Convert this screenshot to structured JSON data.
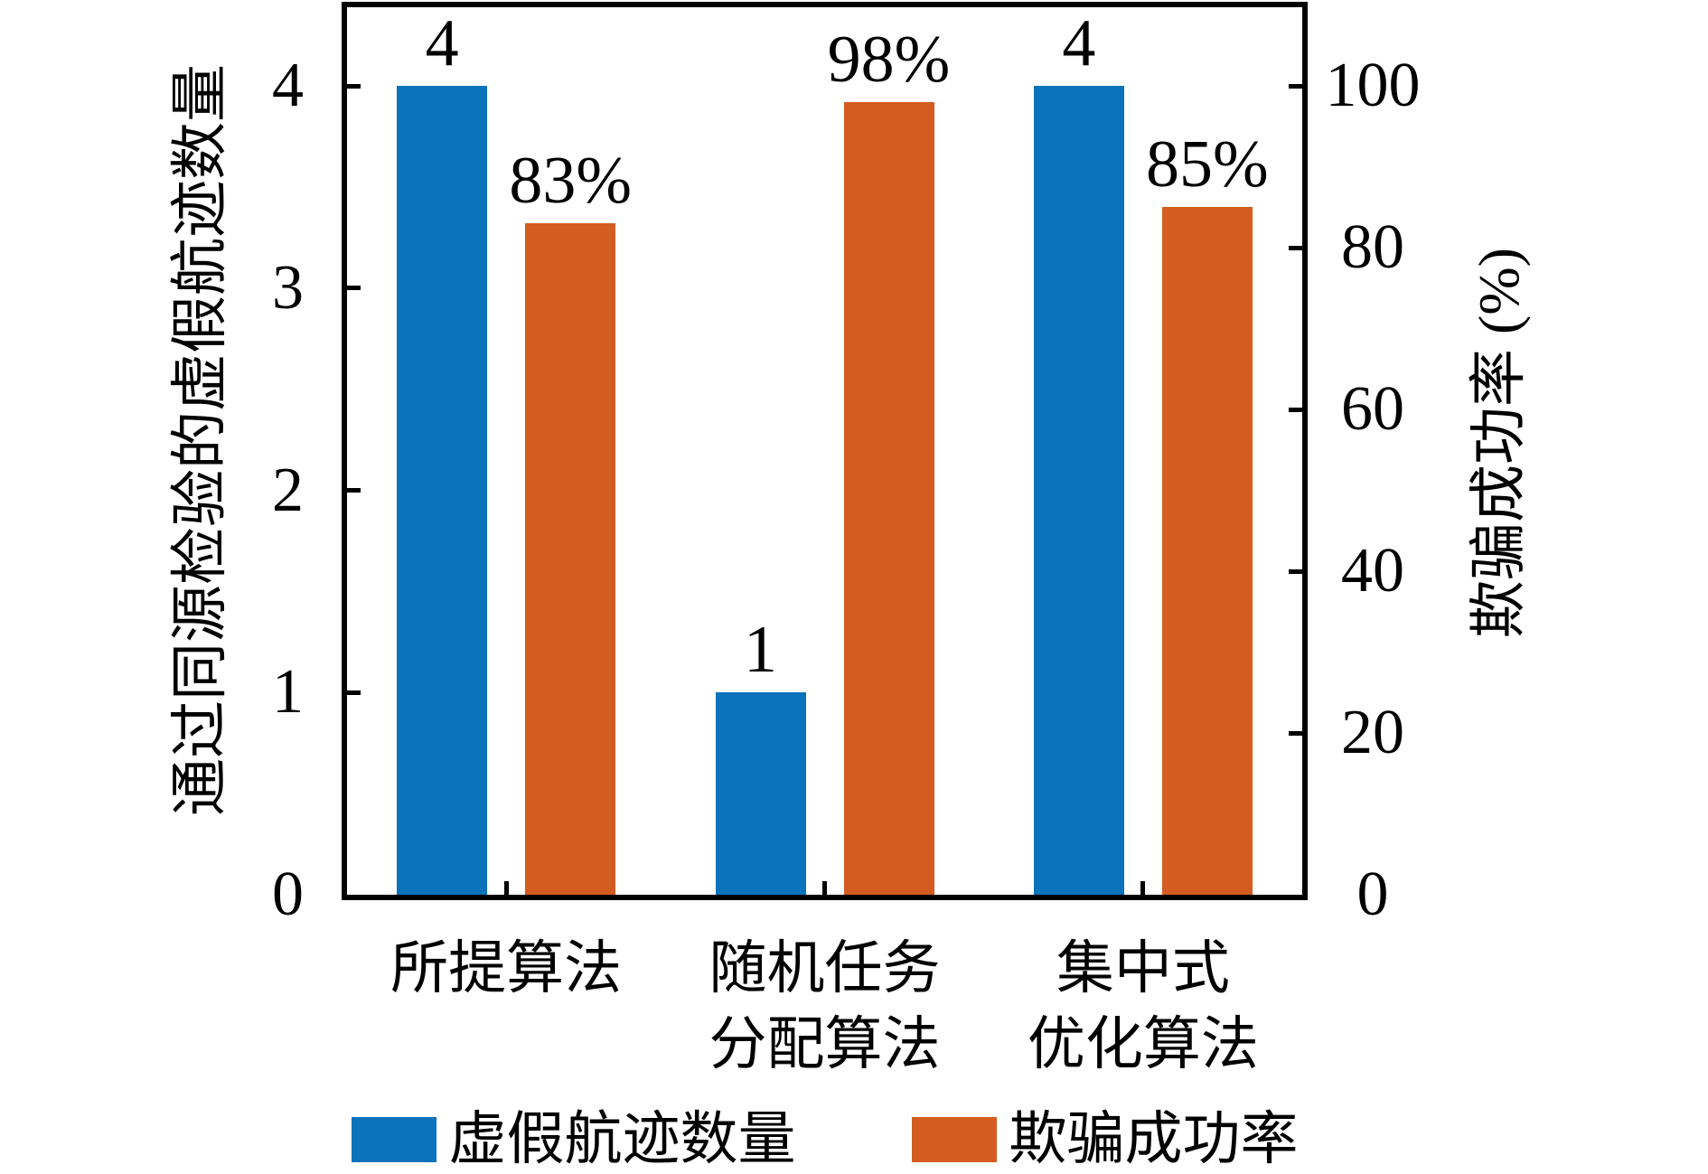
{
  "chart_data": {
    "type": "bar",
    "categories": [
      "所提算法",
      "随机任务\n分配算法",
      "集中式\n优化算法"
    ],
    "series": [
      {
        "key": "false-track-count",
        "name": "虚假航迹数量",
        "axis": "left",
        "color": "#0a73bb",
        "values": [
          4,
          1,
          4
        ],
        "data_labels": [
          "4",
          "1",
          "4"
        ]
      },
      {
        "key": "deception-success-rate",
        "name": "欺骗成功率",
        "axis": "right",
        "color": "#d55c20",
        "values": [
          83,
          98,
          85
        ],
        "data_labels": [
          "83%",
          "98%",
          "85%"
        ]
      }
    ],
    "left_axis": {
      "label": "通过同源检验的虚假航迹数量",
      "ticks": [
        "0",
        "1",
        "2",
        "3",
        "4"
      ],
      "tick_max": 4,
      "range": [
        0,
        4.4
      ]
    },
    "right_axis": {
      "label": "欺骗成功率 (%)",
      "ticks": [
        "0",
        "20",
        "40",
        "60",
        "80",
        "100"
      ],
      "tick_max": 100,
      "range": [
        0,
        110
      ]
    },
    "legend": {
      "position": "bottom",
      "entries": [
        "虚假航迹数量",
        "欺骗成功率"
      ]
    },
    "grid": false,
    "colors": {
      "axis": "#000000",
      "background": "#ffffff"
    }
  }
}
